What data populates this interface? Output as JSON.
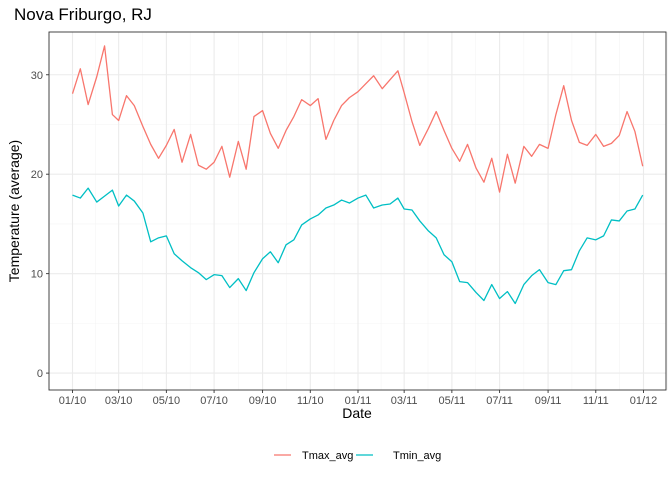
{
  "chart_data": {
    "type": "line",
    "title": "Nova Friburgo, RJ",
    "xlabel": "Date",
    "ylabel": "Temperature (average)",
    "ylim": [
      -1.7,
      34.3
    ],
    "yticks": [
      0,
      10,
      20,
      30
    ],
    "x_tick_labels": [
      "01/10",
      "03/10",
      "05/10",
      "07/10",
      "09/10",
      "11/10",
      "01/11",
      "03/11",
      "05/11",
      "07/11",
      "09/11",
      "11/11",
      "01/12"
    ],
    "x_range": [
      "2010-01-01",
      "2012-01-01"
    ],
    "grid": true,
    "legend_position": "bottom",
    "x_dates": [
      "2010-01-01",
      "2010-01-11",
      "2010-01-21",
      "2010-02-01",
      "2010-02-11",
      "2010-02-21",
      "2010-03-01",
      "2010-03-11",
      "2010-03-21",
      "2010-04-01",
      "2010-04-11",
      "2010-04-21",
      "2010-05-01",
      "2010-05-11",
      "2010-05-21",
      "2010-06-01",
      "2010-06-11",
      "2010-06-21",
      "2010-07-01",
      "2010-07-11",
      "2010-07-21",
      "2010-08-01",
      "2010-08-11",
      "2010-08-21",
      "2010-09-01",
      "2010-09-11",
      "2010-09-21",
      "2010-10-01",
      "2010-10-11",
      "2010-10-21",
      "2010-11-01",
      "2010-11-11",
      "2010-11-21",
      "2010-12-01",
      "2010-12-11",
      "2010-12-21",
      "2011-01-01",
      "2011-01-11",
      "2011-01-21",
      "2011-02-01",
      "2011-02-11",
      "2011-02-21",
      "2011-03-01",
      "2011-03-11",
      "2011-03-21",
      "2011-04-01",
      "2011-04-11",
      "2011-04-21",
      "2011-05-01",
      "2011-05-11",
      "2011-05-21",
      "2011-06-01",
      "2011-06-11",
      "2011-06-21",
      "2011-07-01",
      "2011-07-11",
      "2011-07-21",
      "2011-08-01",
      "2011-08-11",
      "2011-08-21",
      "2011-09-01",
      "2011-09-11",
      "2011-09-21",
      "2011-10-01",
      "2011-10-11",
      "2011-10-21",
      "2011-11-01",
      "2011-11-11",
      "2011-11-21",
      "2011-12-01",
      "2011-12-11",
      "2011-12-21",
      "2011-12-31"
    ],
    "series": [
      {
        "name": "Tmax_avg",
        "color": "#F8766D",
        "values": [
          28.1,
          30.6,
          27.0,
          29.8,
          32.9,
          26.0,
          25.4,
          27.9,
          26.9,
          24.8,
          23.0,
          21.6,
          22.9,
          24.5,
          21.2,
          24.0,
          20.9,
          20.5,
          21.2,
          22.8,
          19.7,
          23.3,
          20.5,
          25.8,
          26.4,
          24.1,
          22.6,
          24.4,
          25.8,
          27.5,
          26.9,
          27.6,
          23.5,
          25.4,
          26.9,
          27.7,
          28.3,
          29.1,
          29.9,
          28.6,
          29.5,
          30.4,
          28.2,
          25.3,
          22.9,
          24.6,
          26.3,
          24.4,
          22.6,
          21.3,
          23.0,
          20.6,
          19.2,
          21.6,
          18.2,
          22.0,
          19.1,
          22.8,
          21.8,
          23.0,
          22.6,
          26.0,
          28.9,
          25.4,
          23.2,
          22.9,
          24.0,
          22.8,
          23.1,
          23.9,
          26.3,
          24.3,
          20.8
        ]
      },
      {
        "name": "Tmin_avg",
        "color": "#00BFC4",
        "values": [
          17.9,
          17.6,
          18.6,
          17.2,
          17.8,
          18.4,
          16.8,
          17.9,
          17.3,
          16.1,
          13.2,
          13.6,
          13.8,
          12.0,
          11.3,
          10.6,
          10.1,
          9.4,
          9.9,
          9.8,
          8.6,
          9.5,
          8.3,
          10.1,
          11.5,
          12.2,
          11.1,
          12.9,
          13.4,
          14.9,
          15.5,
          15.9,
          16.6,
          16.9,
          17.4,
          17.1,
          17.6,
          17.9,
          16.6,
          16.9,
          17.0,
          17.6,
          16.5,
          16.4,
          15.3,
          14.3,
          13.6,
          11.9,
          11.2,
          9.2,
          9.1,
          8.1,
          7.3,
          8.9,
          7.5,
          8.2,
          7.0,
          8.9,
          9.8,
          10.4,
          9.1,
          8.9,
          10.3,
          10.4,
          12.3,
          13.6,
          13.4,
          13.8,
          15.4,
          15.3,
          16.3,
          16.5,
          17.9
        ]
      }
    ]
  }
}
